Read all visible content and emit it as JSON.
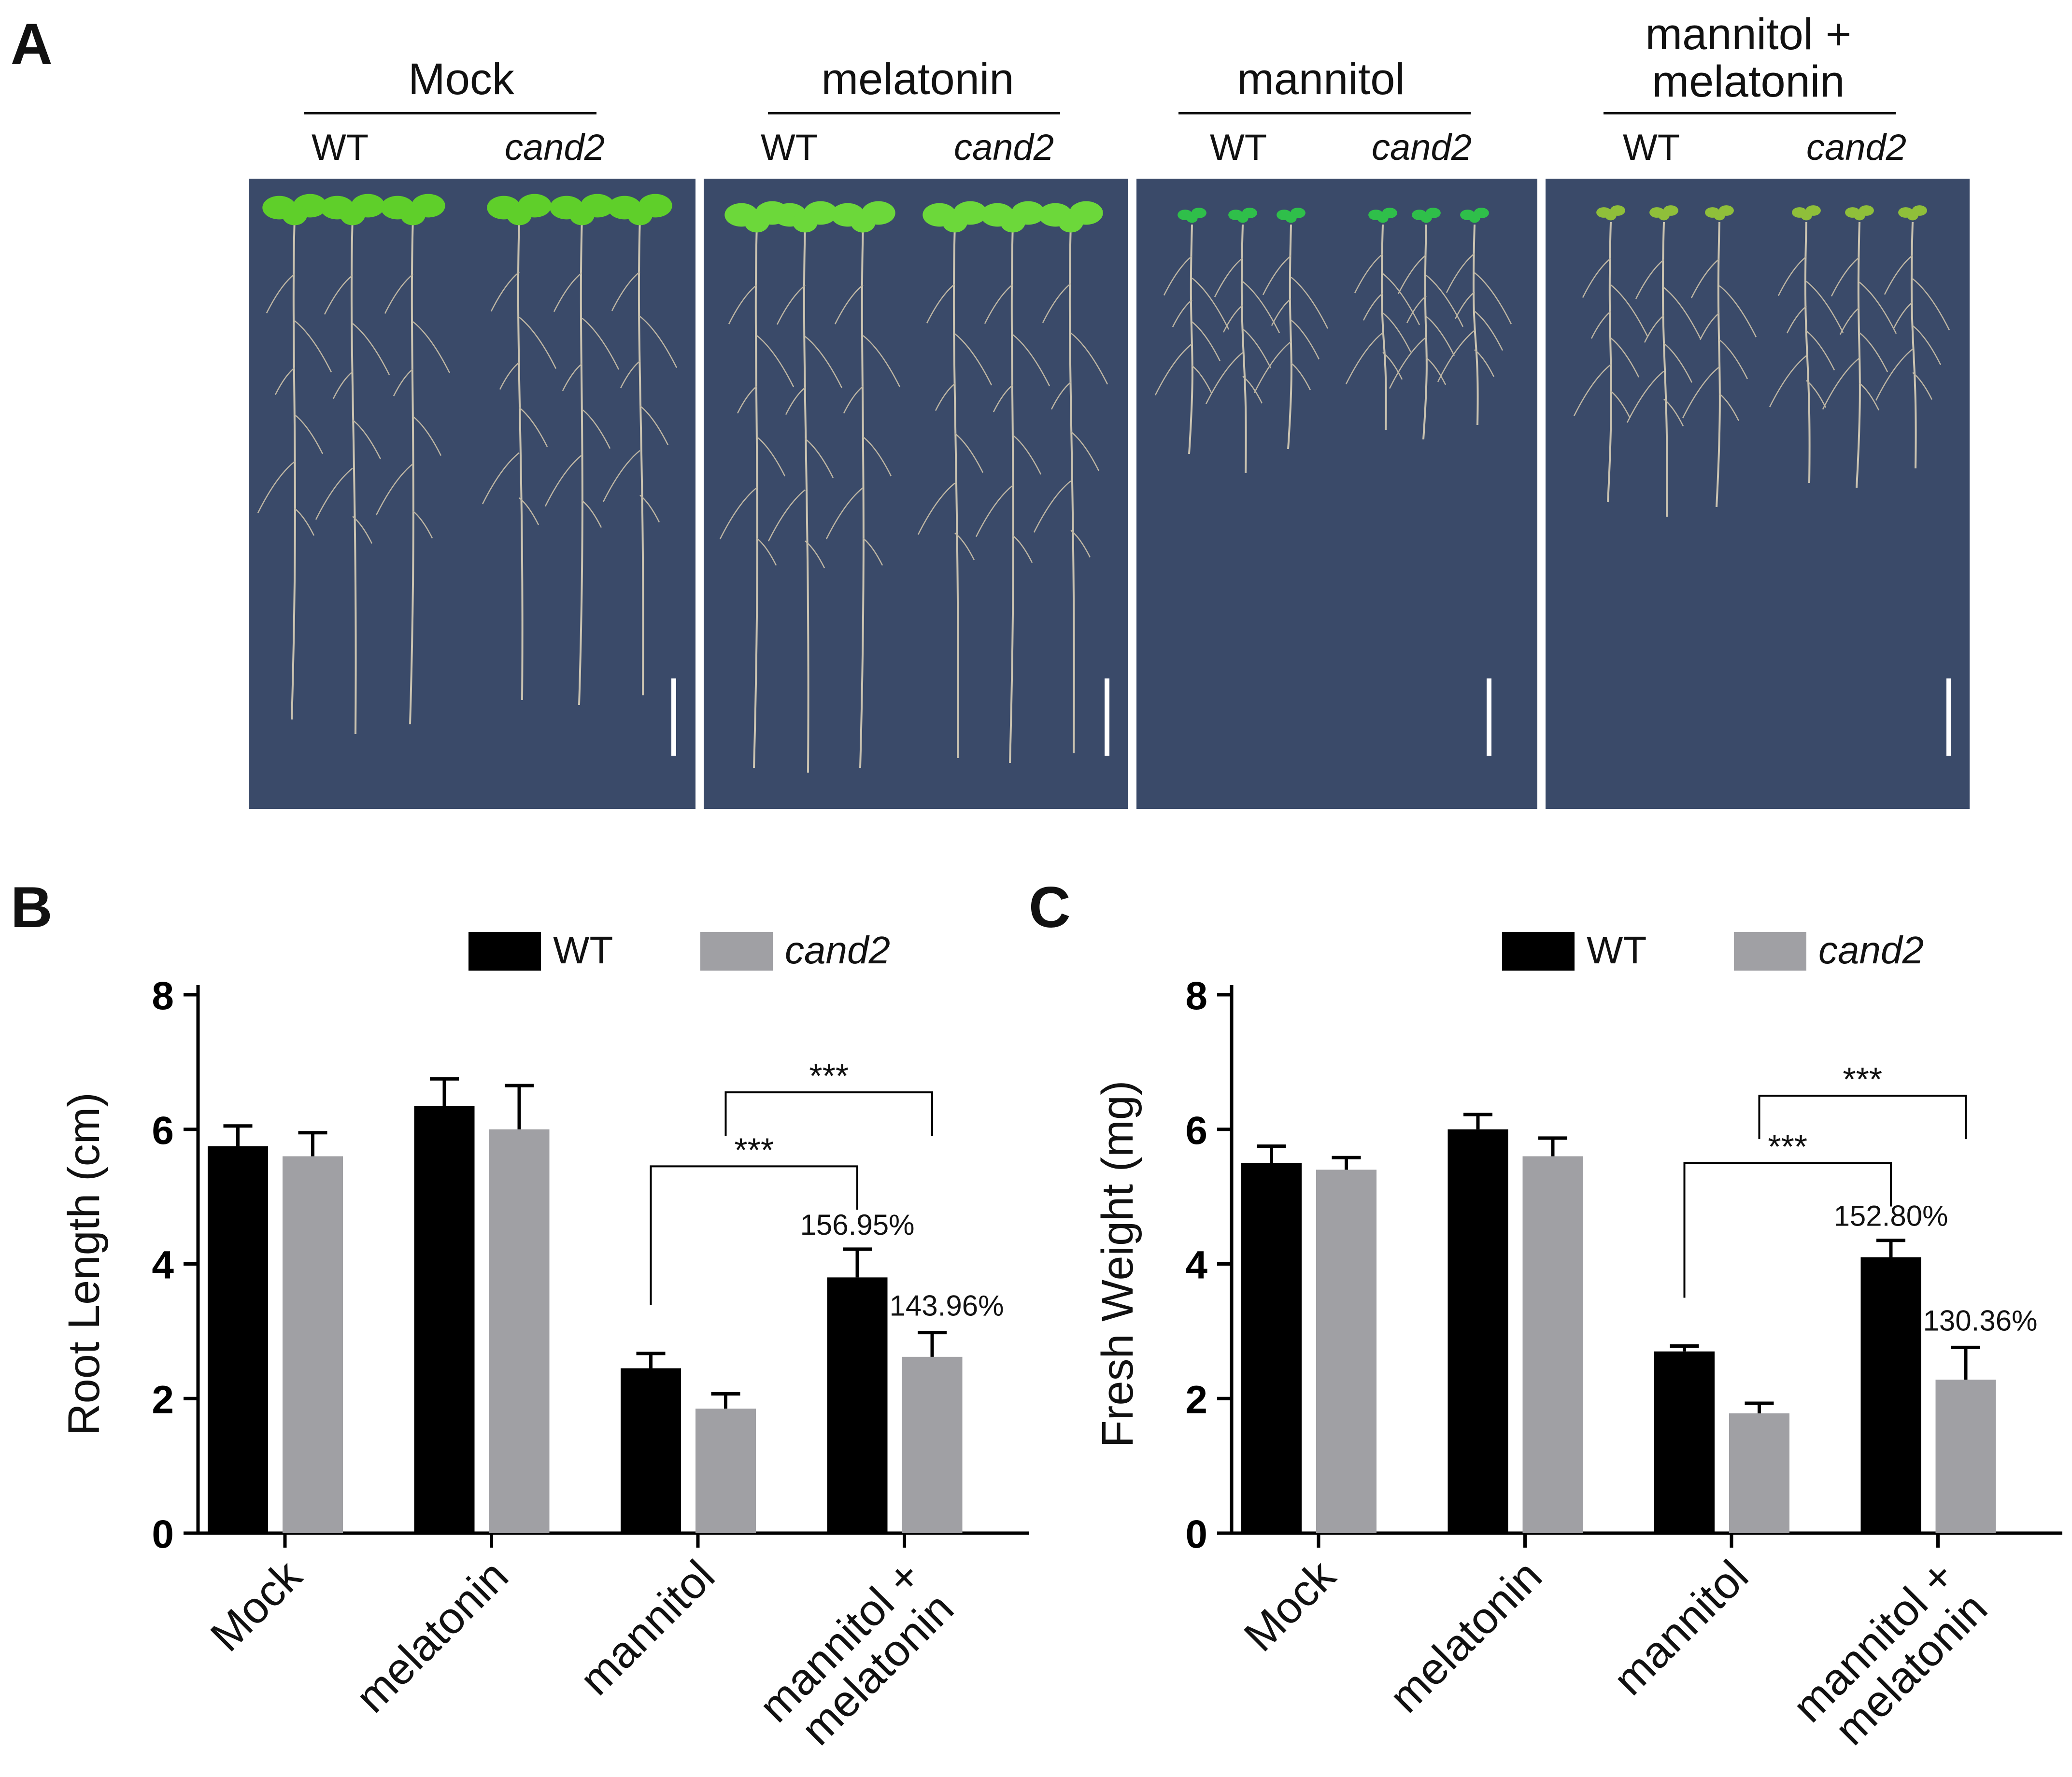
{
  "panel_labels": {
    "a": "A",
    "b": "B",
    "c": "C"
  },
  "panel_a": {
    "groups": [
      {
        "title": "Mock",
        "genotypes": [
          "WT",
          "cand2"
        ]
      },
      {
        "title": "melatonin",
        "genotypes": [
          "WT",
          "cand2"
        ]
      },
      {
        "title": "mannitol",
        "genotypes": [
          "WT",
          "cand2"
        ]
      },
      {
        "title": "mannitol +\nmelatonin",
        "genotypes": [
          "WT",
          "cand2"
        ]
      }
    ],
    "plate_color": "#3a4a69"
  },
  "chart_data": [
    {
      "type": "bar",
      "panel": "B",
      "ylabel": "Root Length (cm)",
      "ylim": [
        0,
        8
      ],
      "yticks": [
        0,
        2,
        4,
        6,
        8
      ],
      "categories": [
        "Mock",
        "melatonin",
        "mannitol",
        "mannitol +\nmelatonin"
      ],
      "series": [
        {
          "name": "WT",
          "color": "#000000",
          "values": [
            5.75,
            6.35,
            2.45,
            3.8
          ],
          "errors": [
            0.3,
            0.4,
            0.22,
            0.42
          ]
        },
        {
          "name": "cand2",
          "color": "#a0a0a4",
          "values": [
            5.6,
            6.0,
            1.85,
            2.62
          ],
          "errors": [
            0.35,
            0.65,
            0.22,
            0.36
          ]
        }
      ],
      "annotations": {
        "percent_wt": "156.95%",
        "percent_cand2": "143.96%",
        "sig_upper": "***",
        "sig_lower": "***"
      },
      "legend": "top"
    },
    {
      "type": "bar",
      "panel": "C",
      "ylabel": "Fresh Weight (mg)",
      "ylim": [
        0,
        8
      ],
      "yticks": [
        0,
        2,
        4,
        6,
        8
      ],
      "categories": [
        "Mock",
        "melatonin",
        "mannitol",
        "mannitol +\nmelatonin"
      ],
      "series": [
        {
          "name": "WT",
          "color": "#000000",
          "values": [
            5.5,
            6.0,
            2.7,
            4.1
          ],
          "errors": [
            0.25,
            0.22,
            0.08,
            0.25
          ]
        },
        {
          "name": "cand2",
          "color": "#a0a0a4",
          "values": [
            5.4,
            5.6,
            1.78,
            2.28
          ],
          "errors": [
            0.18,
            0.27,
            0.15,
            0.48
          ]
        }
      ],
      "annotations": {
        "percent_wt": "152.80%",
        "percent_cand2": "130.36%",
        "sig_upper": "***",
        "sig_lower": "***"
      },
      "legend": "top"
    }
  ]
}
